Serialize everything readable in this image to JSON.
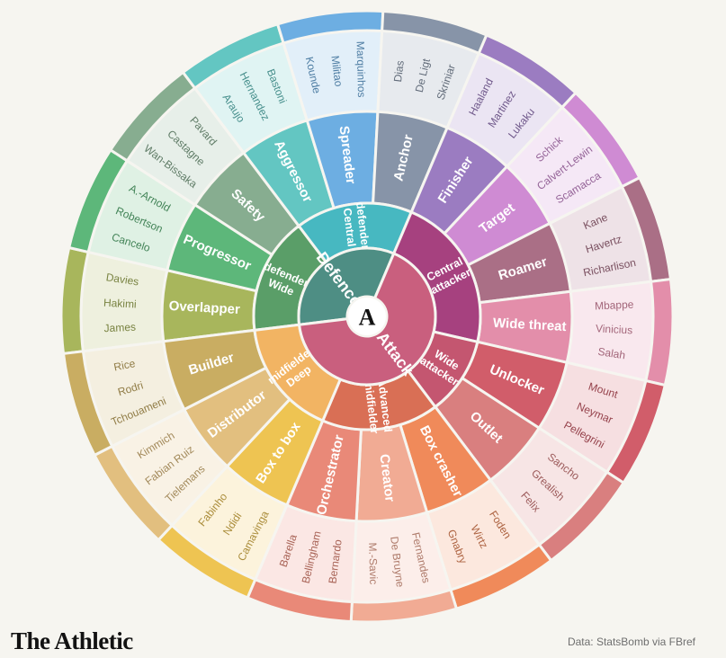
{
  "brand": "The Athletic",
  "source": "Data: StatsBomb via FBref",
  "center_logo": "A",
  "core": [
    {
      "label": "Defence",
      "color": "#4e8e84"
    },
    {
      "label": "Attack",
      "color": "#c95f7e"
    }
  ],
  "groups": [
    {
      "label": "Wide defender",
      "color": "#5a9e68",
      "roles": [
        {
          "label": "Overlapper",
          "color": "#a8b65c",
          "players": [
            "James",
            "Hakimi",
            "Davies"
          ]
        },
        {
          "label": "Progressor",
          "color": "#5db77a",
          "players": [
            "Cancelo",
            "Robertson",
            "A.-Arnold"
          ]
        },
        {
          "label": "Safety",
          "color": "#87ad90",
          "players": [
            "Wan-Bissaka",
            "Castagne",
            "Pavard"
          ]
        }
      ]
    },
    {
      "label": "Central defender",
      "color": "#47b8c1",
      "roles": [
        {
          "label": "Aggressor",
          "color": "#63c6c2",
          "players": [
            "Araujo",
            "Hernandez",
            "Bastoni"
          ]
        },
        {
          "label": "Spreader",
          "color": "#6daee2",
          "players": [
            "Kounde",
            "Militao",
            "Marquinhos"
          ]
        },
        {
          "label": "Anchor",
          "color": "#8794a8",
          "players": [
            "Dias",
            "De Ligt",
            "Skriniar"
          ]
        }
      ]
    },
    {
      "label": "Central attacker",
      "color": "#a6417f",
      "roles": [
        {
          "label": "Finisher",
          "color": "#9b7cc1",
          "players": [
            "Haaland",
            "Martinez",
            "Lukaku"
          ]
        },
        {
          "label": "Target",
          "color": "#cf8bd3",
          "players": [
            "Schick",
            "Calvert-Lewin",
            "Scamacca"
          ]
        },
        {
          "label": "Roamer",
          "color": "#aa6f86",
          "players": [
            "Kane",
            "Havertz",
            "Richarlison"
          ]
        },
        {
          "label": "Wide threat",
          "color": "#e38eaa",
          "players": [
            "Mbappe",
            "Vinicius",
            "Salah"
          ]
        }
      ]
    },
    {
      "label": "Wide attacker",
      "color": "#c45670",
      "roles": [
        {
          "label": "Unlocker",
          "color": "#d15d6a",
          "players": [
            "Mount",
            "Neymar",
            "Pellegrini"
          ]
        },
        {
          "label": "Outlet",
          "color": "#d97f7f",
          "players": [
            "Sancho",
            "Grealish",
            "Felix"
          ]
        }
      ]
    },
    {
      "label": "Advanced midfielder",
      "color": "#d96f55",
      "roles": [
        {
          "label": "Box crasher",
          "color": "#f08a5a",
          "players": [
            "Foden",
            "Wirtz",
            "Gnabry"
          ]
        },
        {
          "label": "Creator",
          "color": "#f1ab94",
          "players": [
            "Fernandes",
            "De Bruyne",
            "M.-Savic"
          ]
        },
        {
          "label": "Orchestrator",
          "color": "#e98978",
          "players": [
            "Bernardo",
            "Bellingham",
            "Barella"
          ]
        }
      ]
    },
    {
      "label": "Deep midfielder",
      "color": "#f2b463",
      "roles": [
        {
          "label": "Box to box",
          "color": "#eec452",
          "players": [
            "Camavinga",
            "Ndidi",
            "Fabinho"
          ]
        },
        {
          "label": "Distributor",
          "color": "#e2bf7f",
          "players": [
            "Tielemans",
            "Fabian Ruiz",
            "Kimmich"
          ]
        },
        {
          "label": "Builder",
          "color": "#c9ad62",
          "players": [
            "Tchouameni",
            "Rodri",
            "Rice"
          ]
        }
      ]
    }
  ]
}
